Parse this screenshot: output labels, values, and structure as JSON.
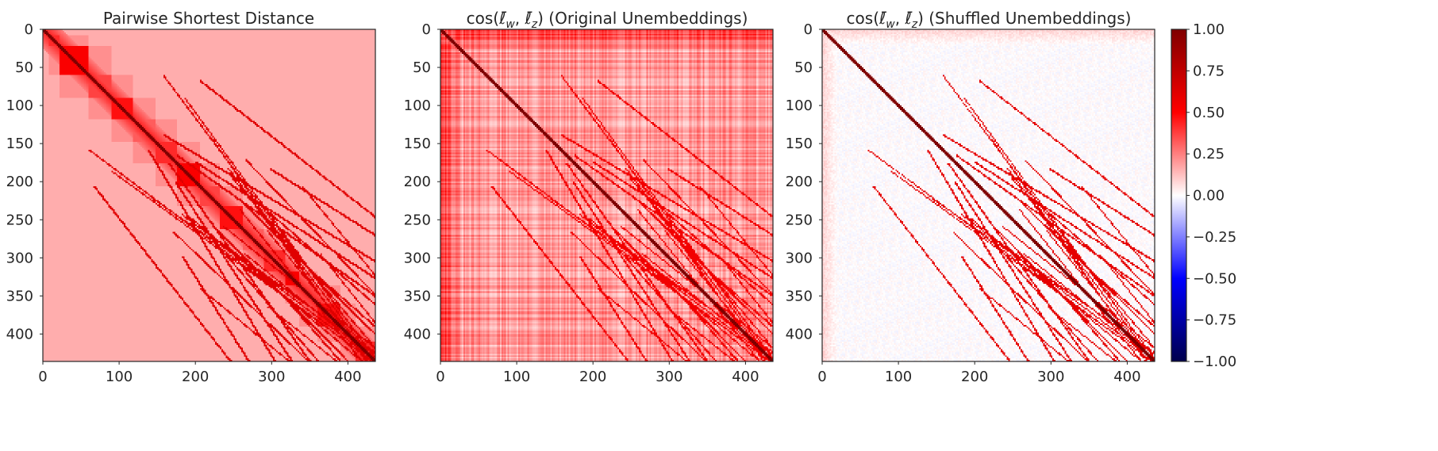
{
  "chart_data": [
    {
      "type": "heatmap",
      "title": "Pairwise Shortest Distance",
      "matrix_size": 436,
      "xlim": [
        0,
        436
      ],
      "ylim": [
        436,
        0
      ],
      "xticks": [
        "0",
        "100",
        "200",
        "300",
        "400"
      ],
      "yticks": [
        "0",
        "50",
        "100",
        "150",
        "200",
        "250",
        "300",
        "350",
        "400"
      ],
      "pattern": "block-structured, values mostly 0.1-0.6 with dark diagonal"
    },
    {
      "type": "heatmap",
      "title_prefix": "cos(",
      "title_w": "ℓ̄",
      "title_w_sub": "w",
      "title_sep": ", ",
      "title_z": "ℓ̄",
      "title_z_sub": "z",
      "title_suffix": ") (Original Unembeddings)",
      "matrix_size": 436,
      "xlim": [
        0,
        436
      ],
      "ylim": [
        436,
        0
      ],
      "xticks": [
        "0",
        "100",
        "200",
        "300",
        "400"
      ],
      "yticks": [
        "0",
        "50",
        "100",
        "150",
        "200",
        "250",
        "300",
        "350",
        "400"
      ],
      "pattern": "dense positive vertical/horizontal striping, diagonal = 1"
    },
    {
      "type": "heatmap",
      "title_prefix": "cos(",
      "title_w": "ℓ̄",
      "title_w_sub": "w",
      "title_sep": ", ",
      "title_z": "ℓ̄",
      "title_z_sub": "z",
      "title_suffix": ") (Shuffled Unembeddings)",
      "matrix_size": 436,
      "xlim": [
        0,
        436
      ],
      "ylim": [
        436,
        0
      ],
      "xticks": [
        "0",
        "100",
        "200",
        "300",
        "400"
      ],
      "yticks": [
        "0",
        "50",
        "100",
        "150",
        "200",
        "250",
        "300",
        "350",
        "400"
      ],
      "pattern": "near-zero background with sparse positive curves, diagonal = 1"
    }
  ],
  "colorbar": {
    "colormap": "seismic",
    "range": [
      -1.0,
      1.0
    ],
    "ticks": [
      "1.00",
      "0.75",
      "0.50",
      "0.25",
      "0.00",
      "−0.25",
      "−0.50",
      "−0.75",
      "−1.00"
    ]
  }
}
